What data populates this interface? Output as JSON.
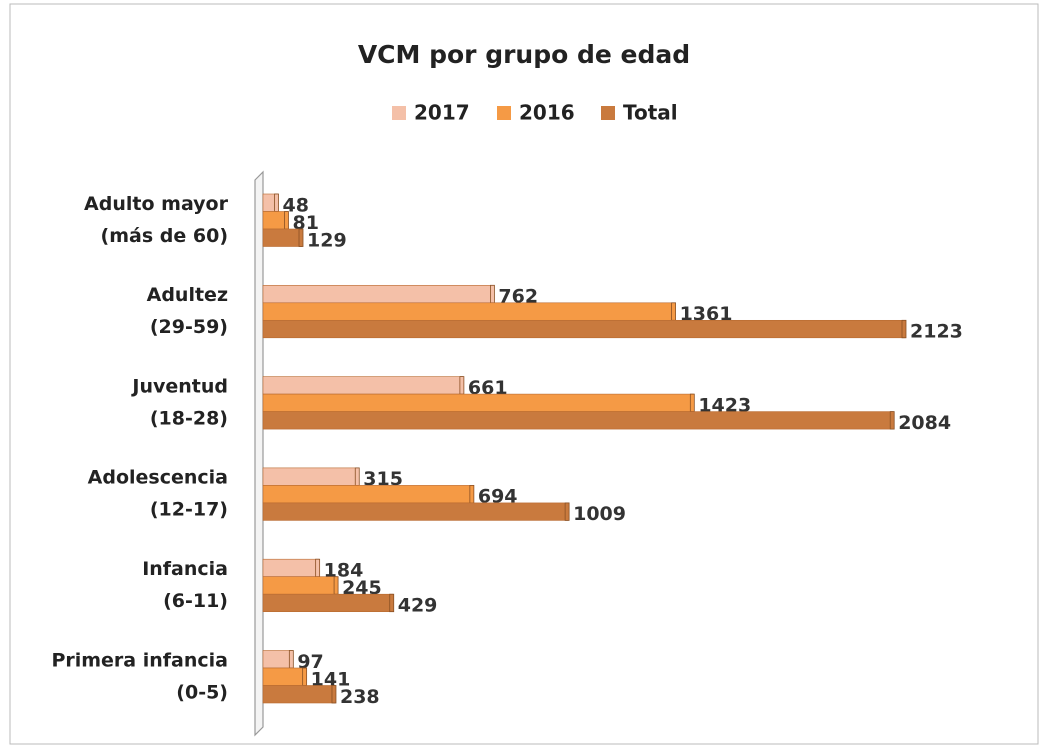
{
  "chart_data": {
    "type": "bar",
    "orientation": "horizontal",
    "title": "VCM por grupo de edad",
    "categories": [
      [
        "Adulto mayor",
        "(más de 60)"
      ],
      [
        "Adultez",
        "(29-59)"
      ],
      [
        "Juventud",
        "(18-28)"
      ],
      [
        "Adolescencia",
        "(12-17)"
      ],
      [
        "Infancia",
        "(6-11)"
      ],
      [
        "Primera infancia",
        "(0-5)"
      ]
    ],
    "series": [
      {
        "name": "2017",
        "color": "#f4c0a8",
        "values": [
          48,
          762,
          661,
          315,
          184,
          97
        ]
      },
      {
        "name": "2016",
        "color": "#f59a45",
        "values": [
          81,
          1361,
          1423,
          694,
          245,
          141
        ]
      },
      {
        "name": "Total",
        "color": "#c97a3e",
        "values": [
          129,
          2123,
          2084,
          1009,
          429,
          238
        ]
      }
    ],
    "legend": "top"
  }
}
